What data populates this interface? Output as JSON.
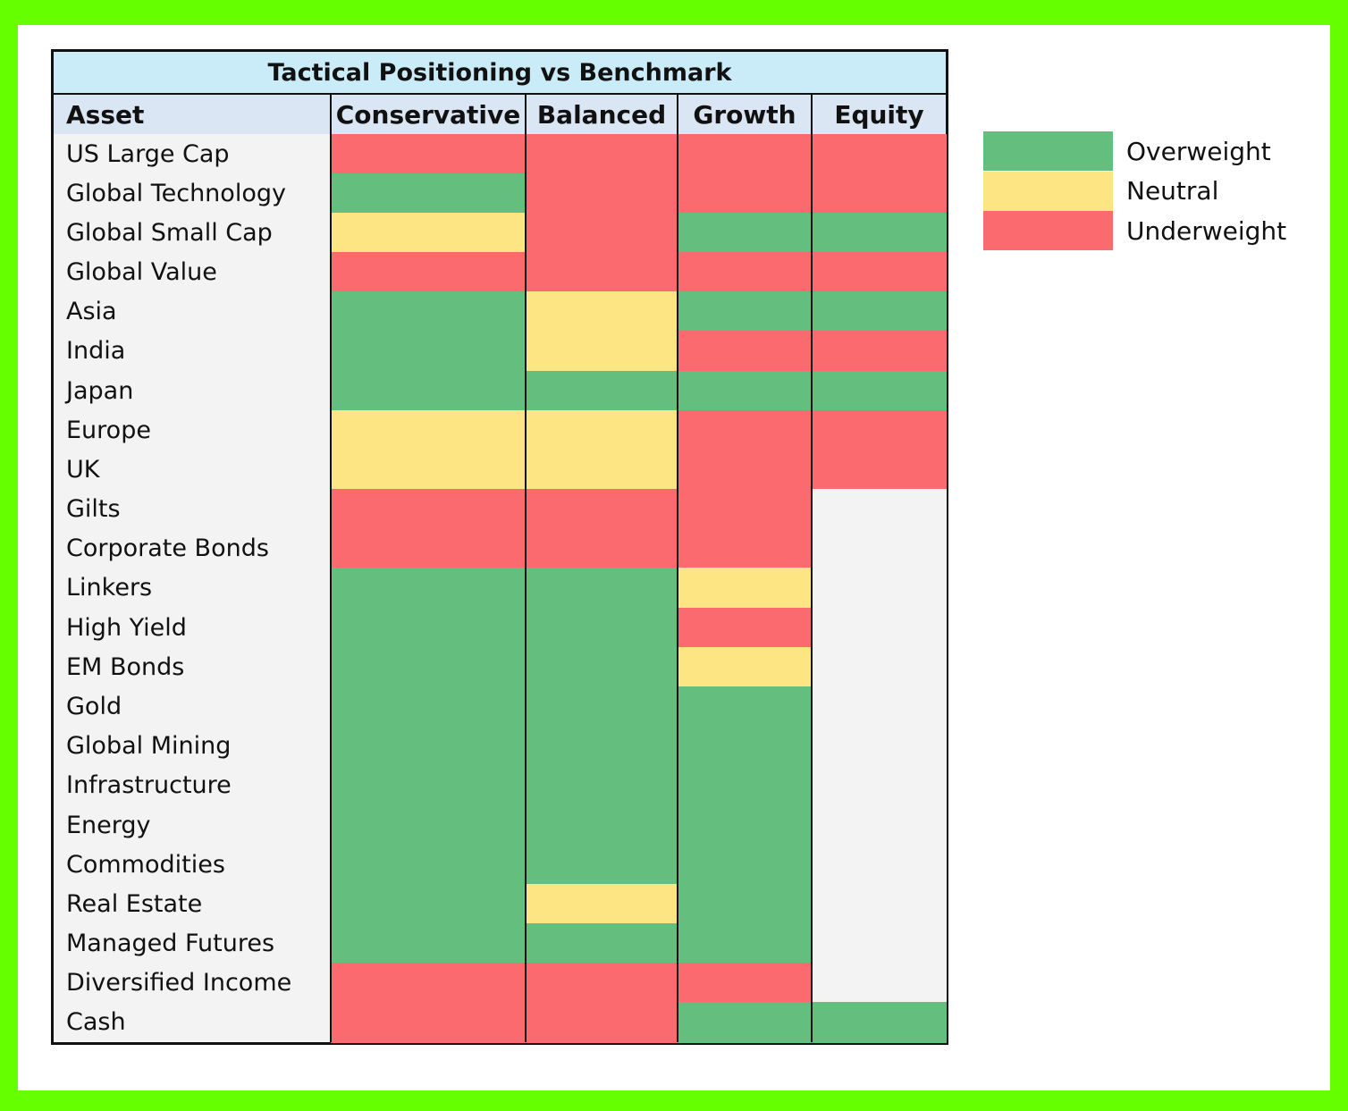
{
  "title": "Tactical Positioning vs Benchmark",
  "colors": {
    "Overweight": "#64bf7e",
    "Neutral": "#fde583",
    "Underweight": "#fb6a6e",
    "blank": "#f3f3f3"
  },
  "legend": [
    {
      "label": "Overweight",
      "key": "Overweight"
    },
    {
      "label": "Neutral",
      "key": "Neutral"
    },
    {
      "label": "Underweight",
      "key": "Underweight"
    }
  ],
  "chart_data": {
    "type": "heatmap",
    "title": "Tactical Positioning vs Benchmark",
    "row_header": "Asset",
    "columns": [
      "Conservative",
      "Balanced",
      "Growth",
      "Equity"
    ],
    "rows": [
      {
        "asset": "US Large Cap",
        "values": [
          "Underweight",
          "Underweight",
          "Underweight",
          "Underweight"
        ]
      },
      {
        "asset": "Global Technology",
        "values": [
          "Overweight",
          "Underweight",
          "Underweight",
          "Underweight"
        ]
      },
      {
        "asset": "Global Small Cap",
        "values": [
          "Neutral",
          "Underweight",
          "Overweight",
          "Overweight"
        ]
      },
      {
        "asset": "Global Value",
        "values": [
          "Underweight",
          "Underweight",
          "Underweight",
          "Underweight"
        ]
      },
      {
        "asset": "Asia",
        "values": [
          "Overweight",
          "Neutral",
          "Overweight",
          "Overweight"
        ]
      },
      {
        "asset": "India",
        "values": [
          "Overweight",
          "Neutral",
          "Underweight",
          "Underweight"
        ]
      },
      {
        "asset": "Japan",
        "values": [
          "Overweight",
          "Overweight",
          "Overweight",
          "Overweight"
        ]
      },
      {
        "asset": "Europe",
        "values": [
          "Neutral",
          "Neutral",
          "Underweight",
          "Underweight"
        ]
      },
      {
        "asset": "UK",
        "values": [
          "Neutral",
          "Neutral",
          "Underweight",
          "Underweight"
        ]
      },
      {
        "asset": "Gilts",
        "values": [
          "Underweight",
          "Underweight",
          "Underweight",
          null
        ]
      },
      {
        "asset": "Corporate Bonds",
        "values": [
          "Underweight",
          "Underweight",
          "Underweight",
          null
        ]
      },
      {
        "asset": "Linkers",
        "values": [
          "Overweight",
          "Overweight",
          "Neutral",
          null
        ]
      },
      {
        "asset": "High Yield",
        "values": [
          "Overweight",
          "Overweight",
          "Underweight",
          null
        ]
      },
      {
        "asset": "EM Bonds",
        "values": [
          "Overweight",
          "Overweight",
          "Neutral",
          null
        ]
      },
      {
        "asset": "Gold",
        "values": [
          "Overweight",
          "Overweight",
          "Overweight",
          null
        ]
      },
      {
        "asset": "Global Mining",
        "values": [
          "Overweight",
          "Overweight",
          "Overweight",
          null
        ]
      },
      {
        "asset": "Infrastructure",
        "values": [
          "Overweight",
          "Overweight",
          "Overweight",
          null
        ]
      },
      {
        "asset": "Energy",
        "values": [
          "Overweight",
          "Overweight",
          "Overweight",
          null
        ]
      },
      {
        "asset": "Commodities",
        "values": [
          "Overweight",
          "Overweight",
          "Overweight",
          null
        ]
      },
      {
        "asset": "Real Estate",
        "values": [
          "Overweight",
          "Neutral",
          "Overweight",
          null
        ]
      },
      {
        "asset": "Managed Futures",
        "values": [
          "Overweight",
          "Overweight",
          "Overweight",
          null
        ]
      },
      {
        "asset": "Diversified Income",
        "values": [
          "Underweight",
          "Underweight",
          "Underweight",
          null
        ]
      },
      {
        "asset": "Cash",
        "values": [
          "Underweight",
          "Underweight",
          "Overweight",
          "Overweight"
        ]
      }
    ]
  }
}
